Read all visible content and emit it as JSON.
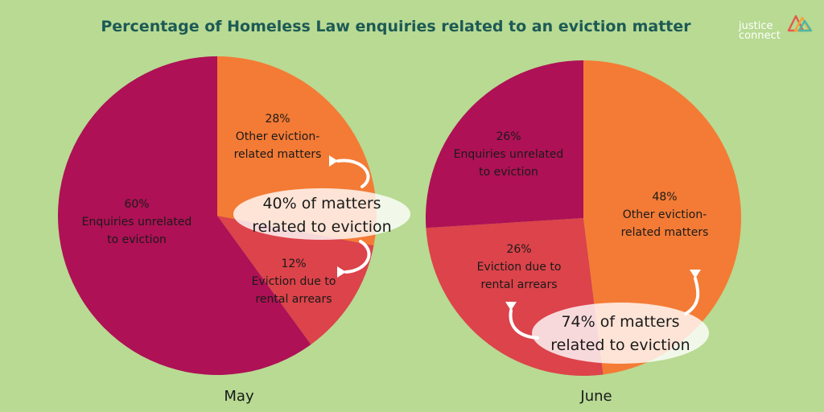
{
  "title": "Percentage of Homeless Law enquiries related to an eviction matter",
  "logo": {
    "line1": "justice",
    "line2": "connect",
    "colors": [
      "#e45b4c",
      "#f1a33a",
      "#4bb7a6"
    ]
  },
  "colors": {
    "background": "#b8da93",
    "unrelated": "#ae1155",
    "other_eviction": "#f47b35",
    "rental_arrears": "#dc434a",
    "title": "#1d5a55",
    "callout": "#ffffff"
  },
  "chart_data": [
    {
      "type": "pie",
      "name": "May",
      "label": "May",
      "slices": [
        {
          "key": "other",
          "value": 28,
          "pct_label": "28%",
          "lines": [
            "Other eviction-",
            "related matters"
          ],
          "color": "#f47b35"
        },
        {
          "key": "arrears",
          "value": 12,
          "pct_label": "12%",
          "lines": [
            "Eviction due to",
            "rental arrears"
          ],
          "color": "#dc434a"
        },
        {
          "key": "unrelated",
          "value": 60,
          "pct_label": "60%",
          "lines": [
            "Enquiries unrelated",
            "to eviction"
          ],
          "color": "#ae1155"
        }
      ],
      "callout": [
        "40% of matters",
        "related to eviction"
      ]
    },
    {
      "type": "pie",
      "name": "June",
      "label": "June",
      "slices": [
        {
          "key": "other",
          "value": 48,
          "pct_label": "48%",
          "lines": [
            "Other eviction-",
            "related matters"
          ],
          "color": "#f47b35"
        },
        {
          "key": "arrears",
          "value": 26,
          "pct_label": "26%",
          "lines": [
            "Eviction due to",
            "rental arrears"
          ],
          "color": "#dc434a"
        },
        {
          "key": "unrelated",
          "value": 26,
          "pct_label": "26%",
          "lines": [
            "Enquiries unrelated",
            "to eviction"
          ],
          "color": "#ae1155"
        }
      ],
      "callout": [
        "74% of matters",
        "related to eviction"
      ]
    }
  ]
}
